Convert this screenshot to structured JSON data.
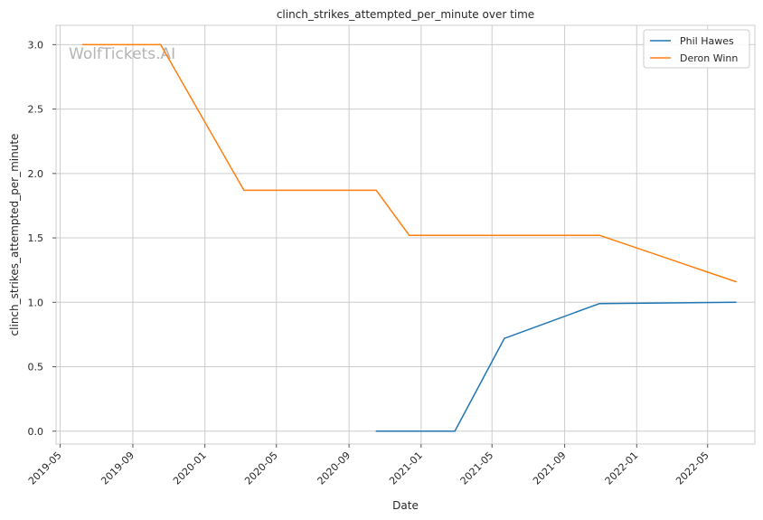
{
  "chart_data": {
    "type": "line",
    "title": "clinch_strikes_attempted_per_minute over time",
    "xlabel": "Date",
    "ylabel": "clinch_strikes_attempted_per_minute",
    "watermark": "WolfTickets.AI",
    "x_ticks": [
      "2019-05",
      "2019-09",
      "2020-01",
      "2020-05",
      "2020-09",
      "2021-01",
      "2021-05",
      "2021-09",
      "2022-01",
      "2022-05"
    ],
    "y_ticks": [
      "0.0",
      "0.5",
      "1.0",
      "1.5",
      "2.0",
      "2.5",
      "3.0"
    ],
    "xlim": [
      "2019-04-24",
      "2022-07-20"
    ],
    "ylim": [
      -0.1,
      3.15
    ],
    "grid": true,
    "legend_position": "top-right",
    "series": [
      {
        "name": "Phil Hawes",
        "color": "#1f77b4",
        "points": [
          {
            "x": "2020-10-17",
            "y": 0.0
          },
          {
            "x": "2021-02-27",
            "y": 0.0
          },
          {
            "x": "2021-05-22",
            "y": 0.72
          },
          {
            "x": "2021-10-30",
            "y": 0.99
          },
          {
            "x": "2022-06-18",
            "y": 1.0
          }
        ]
      },
      {
        "name": "Deron Winn",
        "color": "#ff7f0e",
        "points": [
          {
            "x": "2019-06-08",
            "y": 3.0
          },
          {
            "x": "2019-10-18",
            "y": 3.0
          },
          {
            "x": "2020-03-07",
            "y": 1.87
          },
          {
            "x": "2020-10-17",
            "y": 1.87
          },
          {
            "x": "2020-12-12",
            "y": 1.52
          },
          {
            "x": "2021-10-30",
            "y": 1.52
          },
          {
            "x": "2022-06-18",
            "y": 1.16
          }
        ]
      }
    ]
  }
}
